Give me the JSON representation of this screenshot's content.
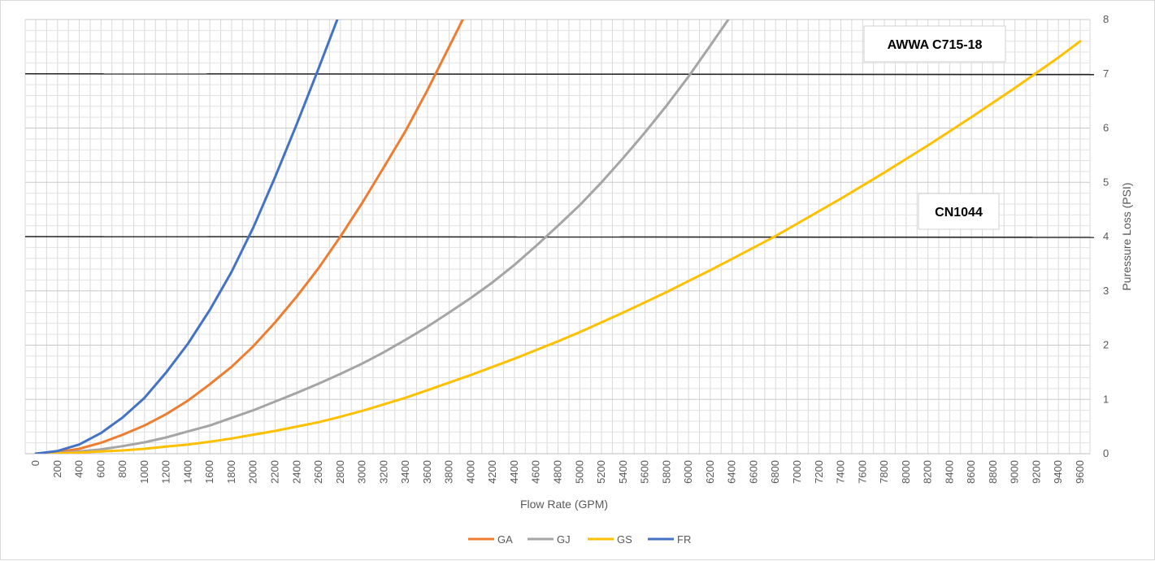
{
  "chart_data": {
    "type": "line",
    "xlabel": "Flow Rate (GPM)",
    "ylabel": "Puressure Loss (PSI)",
    "xlim": [
      0,
      9600
    ],
    "ylim": [
      0,
      8
    ],
    "x_ticks": [
      "0",
      "200",
      "400",
      "600",
      "800",
      "1000",
      "1200",
      "1400",
      "1600",
      "1800",
      "2000",
      "2200",
      "2400",
      "2600",
      "2800",
      "3000",
      "3200",
      "3400",
      "3600",
      "3800",
      "4000",
      "4200",
      "4400",
      "4600",
      "4800",
      "5000",
      "5200",
      "5400",
      "5600",
      "5800",
      "6000",
      "6200",
      "6400",
      "6600",
      "6800",
      "7000",
      "7200",
      "7400",
      "7600",
      "7800",
      "8000",
      "8200",
      "8400",
      "8600",
      "8800",
      "9000",
      "9200",
      "9400",
      "9600"
    ],
    "y_ticks": [
      "0",
      "1",
      "2",
      "3",
      "4",
      "5",
      "6",
      "7",
      "8"
    ],
    "y_axis_position": "right",
    "grid": true,
    "legend_position": "bottom",
    "series": [
      {
        "name": "GA",
        "color": "#ED7D31",
        "x": [
          0,
          200,
          400,
          600,
          800,
          1000,
          1200,
          1400,
          1600,
          1800,
          2000,
          2200,
          2400,
          2600,
          2800,
          3000,
          3200,
          3400,
          3600,
          3800,
          4000
        ],
        "y": [
          0,
          0.03,
          0.09,
          0.2,
          0.35,
          0.52,
          0.73,
          0.98,
          1.28,
          1.6,
          1.98,
          2.42,
          2.9,
          3.42,
          4.0,
          4.62,
          5.28,
          5.95,
          6.7,
          7.5,
          8.3
        ]
      },
      {
        "name": "GJ",
        "color": "#A5A5A5",
        "x": [
          0,
          200,
          400,
          600,
          800,
          1000,
          1200,
          1400,
          1600,
          1800,
          2000,
          2200,
          2400,
          2600,
          2800,
          3000,
          3200,
          3400,
          3600,
          3800,
          4000,
          4200,
          4400,
          4600,
          4800,
          5000,
          5200,
          5400,
          5600,
          5800,
          6000,
          6200,
          6400
        ],
        "y": [
          0,
          0.01,
          0.04,
          0.08,
          0.14,
          0.21,
          0.3,
          0.41,
          0.52,
          0.66,
          0.8,
          0.96,
          1.12,
          1.29,
          1.47,
          1.66,
          1.87,
          2.1,
          2.34,
          2.6,
          2.87,
          3.16,
          3.48,
          3.83,
          4.2,
          4.58,
          5.0,
          5.45,
          5.92,
          6.42,
          6.95,
          7.52,
          8.1
        ]
      },
      {
        "name": "GS",
        "color": "#FFC000",
        "x": [
          0,
          200,
          400,
          600,
          800,
          1000,
          1200,
          1400,
          1600,
          1800,
          2000,
          2200,
          2400,
          2600,
          2800,
          3000,
          3200,
          3400,
          3600,
          3800,
          4000,
          4200,
          4400,
          4600,
          4800,
          5000,
          5200,
          5400,
          5600,
          5800,
          6000,
          6200,
          6400,
          6600,
          6800,
          7000,
          7200,
          7400,
          7600,
          7800,
          8000,
          8200,
          8400,
          8600,
          8800,
          9000,
          9200,
          9400,
          9600
        ],
        "y": [
          0,
          0.005,
          0.02,
          0.04,
          0.06,
          0.09,
          0.13,
          0.17,
          0.22,
          0.28,
          0.35,
          0.42,
          0.5,
          0.58,
          0.68,
          0.79,
          0.91,
          1.03,
          1.17,
          1.31,
          1.45,
          1.6,
          1.75,
          1.91,
          2.07,
          2.24,
          2.42,
          2.6,
          2.79,
          2.98,
          3.18,
          3.38,
          3.59,
          3.8,
          4.01,
          4.24,
          4.47,
          4.7,
          4.94,
          5.18,
          5.43,
          5.68,
          5.94,
          6.2,
          6.47,
          6.74,
          7.02,
          7.3,
          7.6
        ]
      },
      {
        "name": "FR",
        "color": "#4472C4",
        "x": [
          0,
          200,
          400,
          600,
          800,
          1000,
          1200,
          1400,
          1600,
          1800,
          2000,
          2200,
          2400,
          2600,
          2800
        ],
        "y": [
          0,
          0.05,
          0.17,
          0.38,
          0.67,
          1.03,
          1.5,
          2.03,
          2.65,
          3.35,
          4.17,
          5.1,
          6.08,
          7.1,
          8.15
        ]
      }
    ],
    "reference_lines": [
      {
        "label": "AWWA C715-18",
        "y": 7
      },
      {
        "label": "CN1044",
        "y": 4
      }
    ]
  }
}
